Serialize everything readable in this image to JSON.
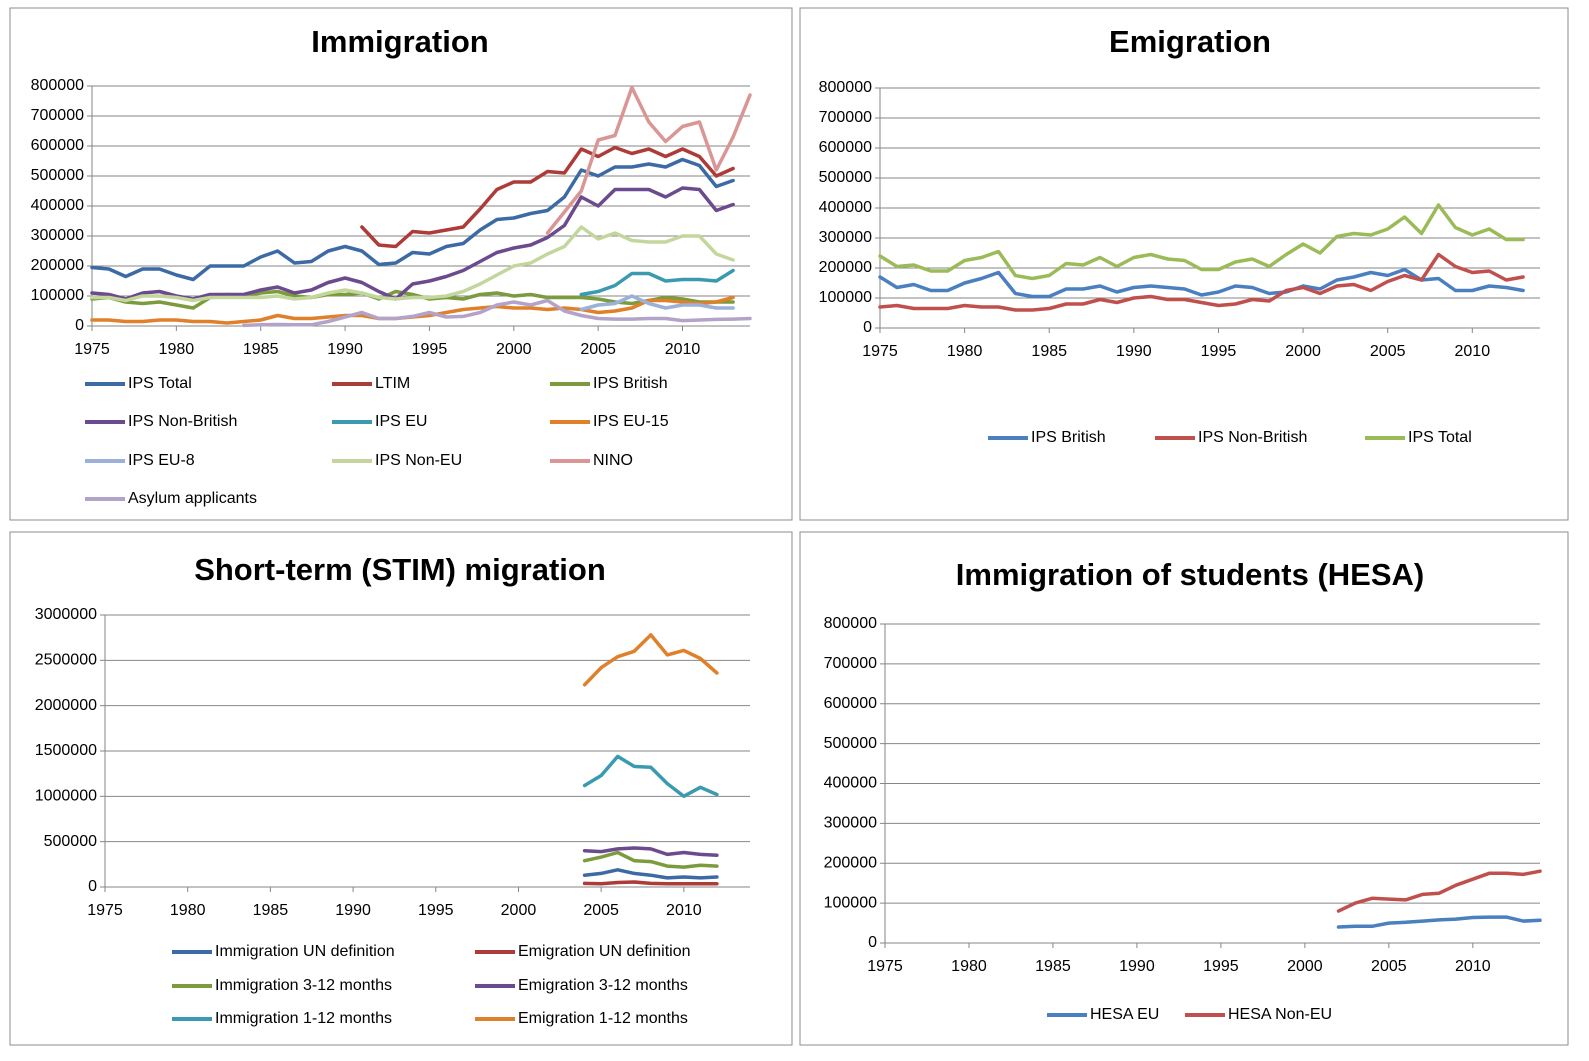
{
  "chart_data": [
    {
      "type": "line",
      "title": "Immigration",
      "x": [
        1975,
        1976,
        1977,
        1978,
        1979,
        1980,
        1981,
        1982,
        1983,
        1984,
        1985,
        1986,
        1987,
        1988,
        1989,
        1990,
        1991,
        1992,
        1993,
        1994,
        1995,
        1996,
        1997,
        1998,
        1999,
        2000,
        2001,
        2002,
        2003,
        2004,
        2005,
        2006,
        2007,
        2008,
        2009,
        2010,
        2011,
        2012,
        2013,
        2014
      ],
      "xlim": [
        1975,
        2014
      ],
      "xticks": [
        1975,
        1980,
        1985,
        1990,
        1995,
        2000,
        2005,
        2010
      ],
      "ylim": [
        0,
        800000
      ],
      "yticks": [
        0,
        100000,
        200000,
        300000,
        400000,
        500000,
        600000,
        700000,
        800000
      ],
      "grid": true,
      "series": [
        {
          "name": "IPS Total",
          "color": "#3c6aa5",
          "values": [
            195000,
            190000,
            165000,
            190000,
            190000,
            170000,
            155000,
            200000,
            200000,
            200000,
            230000,
            250000,
            210000,
            215000,
            250000,
            265000,
            250000,
            205000,
            210000,
            245000,
            240000,
            265000,
            275000,
            320000,
            355000,
            360000,
            375000,
            385000,
            430000,
            520000,
            500000,
            530000,
            530000,
            540000,
            530000,
            555000,
            535000,
            465000,
            485000,
            null
          ]
        },
        {
          "name": "LTIM",
          "color": "#ad3b38",
          "values": [
            null,
            null,
            null,
            null,
            null,
            null,
            null,
            null,
            null,
            null,
            null,
            null,
            null,
            null,
            null,
            null,
            330000,
            270000,
            265000,
            315000,
            310000,
            320000,
            330000,
            390000,
            455000,
            480000,
            480000,
            515000,
            510000,
            590000,
            565000,
            595000,
            575000,
            590000,
            565000,
            590000,
            565000,
            500000,
            525000,
            null
          ]
        },
        {
          "name": "IPS British",
          "color": "#7b9b3d",
          "values": [
            90000,
            95000,
            80000,
            75000,
            80000,
            70000,
            60000,
            95000,
            105000,
            100000,
            110000,
            115000,
            100000,
            95000,
            105000,
            105000,
            110000,
            90000,
            115000,
            105000,
            90000,
            95000,
            90000,
            105000,
            110000,
            100000,
            105000,
            95000,
            95000,
            95000,
            90000,
            80000,
            75000,
            85000,
            95000,
            90000,
            80000,
            80000,
            80000,
            null
          ]
        },
        {
          "name": "IPS Non-British",
          "color": "#6b4a8e",
          "values": [
            110000,
            105000,
            90000,
            110000,
            115000,
            100000,
            90000,
            105000,
            105000,
            105000,
            120000,
            130000,
            110000,
            120000,
            145000,
            160000,
            145000,
            115000,
            90000,
            140000,
            150000,
            165000,
            185000,
            215000,
            245000,
            260000,
            270000,
            295000,
            335000,
            430000,
            400000,
            455000,
            455000,
            455000,
            430000,
            460000,
            455000,
            385000,
            405000,
            null
          ]
        },
        {
          "name": "IPS EU",
          "color": "#3a9bb0",
          "values": [
            null,
            null,
            null,
            null,
            null,
            null,
            null,
            null,
            null,
            null,
            null,
            null,
            null,
            null,
            null,
            null,
            null,
            null,
            null,
            null,
            null,
            null,
            null,
            null,
            null,
            null,
            null,
            null,
            null,
            105000,
            115000,
            135000,
            175000,
            175000,
            150000,
            155000,
            155000,
            150000,
            185000,
            null
          ]
        },
        {
          "name": "IPS EU-15",
          "color": "#e0802a",
          "values": [
            20000,
            20000,
            15000,
            15000,
            20000,
            20000,
            15000,
            15000,
            10000,
            15000,
            20000,
            35000,
            25000,
            25000,
            30000,
            35000,
            35000,
            25000,
            25000,
            30000,
            35000,
            45000,
            55000,
            60000,
            65000,
            60000,
            60000,
            55000,
            60000,
            55000,
            45000,
            50000,
            60000,
            85000,
            85000,
            80000,
            75000,
            80000,
            95000,
            null
          ]
        },
        {
          "name": "IPS EU-8",
          "color": "#9bb1d9",
          "values": [
            null,
            null,
            null,
            null,
            null,
            null,
            null,
            null,
            null,
            null,
            null,
            null,
            null,
            null,
            null,
            null,
            null,
            null,
            null,
            null,
            null,
            null,
            null,
            null,
            null,
            null,
            null,
            null,
            null,
            55000,
            70000,
            75000,
            100000,
            75000,
            60000,
            70000,
            70000,
            60000,
            60000,
            null
          ]
        },
        {
          "name": "IPS Non-EU",
          "color": "#c3d79c",
          "values": [
            95000,
            95000,
            85000,
            100000,
            100000,
            95000,
            85000,
            95000,
            95000,
            95000,
            95000,
            100000,
            90000,
            95000,
            110000,
            120000,
            110000,
            95000,
            90000,
            95000,
            95000,
            100000,
            115000,
            140000,
            170000,
            200000,
            210000,
            240000,
            265000,
            330000,
            290000,
            310000,
            285000,
            280000,
            280000,
            300000,
            300000,
            240000,
            220000,
            null
          ]
        },
        {
          "name": "NINO",
          "color": "#d99694",
          "values": [
            null,
            null,
            null,
            null,
            null,
            null,
            null,
            null,
            null,
            null,
            null,
            null,
            null,
            null,
            null,
            null,
            null,
            null,
            null,
            null,
            null,
            null,
            null,
            null,
            null,
            null,
            null,
            310000,
            380000,
            450000,
            620000,
            635000,
            795000,
            680000,
            615000,
            665000,
            680000,
            520000,
            630000,
            770000
          ]
        },
        {
          "name": "Asylum applicants",
          "color": "#b3a3c8",
          "values": [
            null,
            null,
            null,
            null,
            null,
            null,
            null,
            null,
            null,
            2000,
            4000,
            5000,
            4000,
            4000,
            15000,
            30000,
            45000,
            25000,
            25000,
            32000,
            45000,
            30000,
            32000,
            45000,
            70000,
            80000,
            70000,
            85000,
            50000,
            35000,
            25000,
            23000,
            23000,
            25000,
            25000,
            18000,
            20000,
            22000,
            23000,
            25000
          ]
        }
      ]
    },
    {
      "type": "line",
      "title": "Emigration",
      "x": [
        1975,
        1976,
        1977,
        1978,
        1979,
        1980,
        1981,
        1982,
        1983,
        1984,
        1985,
        1986,
        1987,
        1988,
        1989,
        1990,
        1991,
        1992,
        1993,
        1994,
        1995,
        1996,
        1997,
        1998,
        1999,
        2000,
        2001,
        2002,
        2003,
        2004,
        2005,
        2006,
        2007,
        2008,
        2009,
        2010,
        2011,
        2012,
        2013
      ],
      "xlim": [
        1975,
        2014
      ],
      "xticks": [
        1975,
        1980,
        1985,
        1990,
        1995,
        2000,
        2005,
        2010
      ],
      "ylim": [
        0,
        800000
      ],
      "yticks": [
        0,
        100000,
        200000,
        300000,
        400000,
        500000,
        600000,
        700000,
        800000
      ],
      "grid": true,
      "series": [
        {
          "name": "IPS British",
          "color": "#4a7fc0",
          "values": [
            170000,
            135000,
            145000,
            125000,
            125000,
            150000,
            165000,
            185000,
            115000,
            105000,
            105000,
            130000,
            130000,
            140000,
            120000,
            135000,
            140000,
            135000,
            130000,
            110000,
            120000,
            140000,
            135000,
            115000,
            120000,
            140000,
            130000,
            160000,
            170000,
            185000,
            175000,
            195000,
            160000,
            165000,
            125000,
            125000,
            140000,
            135000,
            125000
          ]
        },
        {
          "name": "IPS Non-British",
          "color": "#c0504d",
          "values": [
            70000,
            75000,
            65000,
            65000,
            65000,
            75000,
            70000,
            70000,
            60000,
            60000,
            65000,
            80000,
            80000,
            95000,
            85000,
            100000,
            105000,
            95000,
            95000,
            85000,
            75000,
            80000,
            95000,
            90000,
            125000,
            135000,
            115000,
            140000,
            145000,
            125000,
            155000,
            175000,
            160000,
            245000,
            205000,
            185000,
            190000,
            160000,
            170000
          ]
        },
        {
          "name": "IPS Total",
          "color": "#9bbb59",
          "values": [
            240000,
            205000,
            210000,
            190000,
            190000,
            225000,
            235000,
            255000,
            175000,
            165000,
            175000,
            215000,
            210000,
            235000,
            205000,
            235000,
            245000,
            230000,
            225000,
            195000,
            195000,
            220000,
            230000,
            205000,
            245000,
            280000,
            250000,
            305000,
            315000,
            310000,
            330000,
            370000,
            315000,
            410000,
            335000,
            310000,
            330000,
            295000,
            295000
          ]
        }
      ]
    },
    {
      "type": "line",
      "title": "Short-term (STIM) migration",
      "x": [
        2004,
        2005,
        2006,
        2007,
        2008,
        2009,
        2010,
        2011,
        2012
      ],
      "xlim": [
        1975,
        2014
      ],
      "xticks": [
        1975,
        1980,
        1985,
        1990,
        1995,
        2000,
        2005,
        2010
      ],
      "ylim": [
        0,
        3000000
      ],
      "yticks": [
        0,
        500000,
        1000000,
        1500000,
        2000000,
        2500000,
        3000000
      ],
      "grid": true,
      "series": [
        {
          "name": "Immigration UN definition",
          "color": "#3c6aa5",
          "values": [
            130000,
            150000,
            190000,
            150000,
            130000,
            100000,
            110000,
            100000,
            110000
          ]
        },
        {
          "name": "Emigration UN definition",
          "color": "#ad3b38",
          "values": [
            40000,
            35000,
            50000,
            55000,
            40000,
            35000,
            35000,
            35000,
            35000
          ]
        },
        {
          "name": "Immigration 3-12 months",
          "color": "#7b9b3d",
          "values": [
            290000,
            330000,
            380000,
            290000,
            280000,
            230000,
            220000,
            240000,
            230000
          ]
        },
        {
          "name": "Emigration 3-12 months",
          "color": "#6b4a8e",
          "values": [
            400000,
            390000,
            420000,
            430000,
            420000,
            360000,
            380000,
            360000,
            350000
          ]
        },
        {
          "name": "Immigration 1-12 months",
          "color": "#3a9bb0",
          "values": [
            1120000,
            1230000,
            1440000,
            1330000,
            1320000,
            1140000,
            1000000,
            1100000,
            1020000
          ]
        },
        {
          "name": "Emigration 1-12 months",
          "color": "#e0802a",
          "values": [
            2230000,
            2420000,
            2540000,
            2600000,
            2780000,
            2560000,
            2610000,
            2520000,
            2360000
          ]
        }
      ]
    },
    {
      "type": "line",
      "title": "Immigration of students (HESA)",
      "x": [
        2002,
        2003,
        2004,
        2005,
        2006,
        2007,
        2008,
        2009,
        2010,
        2011,
        2012,
        2013,
        2014
      ],
      "xlim": [
        1975,
        2014
      ],
      "xticks": [
        1975,
        1980,
        1985,
        1990,
        1995,
        2000,
        2005,
        2010
      ],
      "ylim": [
        0,
        800000
      ],
      "yticks": [
        0,
        100000,
        200000,
        300000,
        400000,
        500000,
        600000,
        700000,
        800000
      ],
      "grid": true,
      "series": [
        {
          "name": "HESA EU",
          "color": "#4a7fc0",
          "values": [
            40000,
            42000,
            42000,
            50000,
            52000,
            55000,
            58000,
            60000,
            64000,
            65000,
            65000,
            55000,
            57000
          ]
        },
        {
          "name": "HESA Non-EU",
          "color": "#c0504d",
          "values": [
            80000,
            100000,
            112000,
            110000,
            108000,
            122000,
            125000,
            145000,
            160000,
            175000,
            175000,
            172000,
            180000
          ]
        }
      ]
    }
  ]
}
